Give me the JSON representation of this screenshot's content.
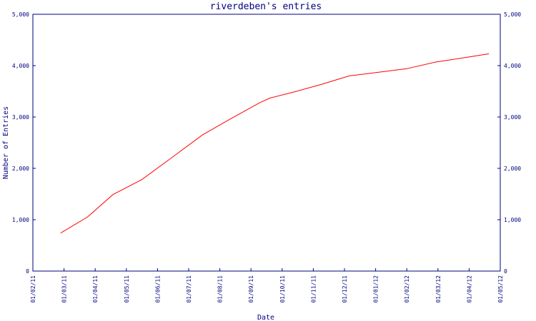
{
  "chart_data": {
    "type": "line",
    "title": "riverdeben's entries",
    "xlabel": "Date",
    "ylabel": "Number of Entries",
    "x_tick_labels": [
      "01/02/11",
      "01/03/11",
      "01/04/11",
      "01/05/11",
      "01/06/11",
      "01/07/11",
      "01/08/11",
      "01/09/11",
      "01/10/11",
      "01/11/11",
      "01/12/11",
      "01/01/12",
      "01/02/12",
      "01/03/12",
      "01/04/12",
      "01/05/12"
    ],
    "y_tick_labels": [
      "0",
      "1,000",
      "2,000",
      "3,000",
      "4,000",
      "5,000"
    ],
    "y_ticks": [
      0,
      1000,
      2000,
      3000,
      4000,
      5000
    ],
    "ylim": [
      0,
      5000
    ],
    "xlim": [
      "2011-02-01",
      "2012-05-01"
    ],
    "grid": false,
    "colors": {
      "axis": "#000080",
      "line": "#ff0000"
    },
    "series": [
      {
        "points": [
          {
            "x": "2011-02-28",
            "y": 740
          },
          {
            "x": "2011-03-26",
            "y": 1050
          },
          {
            "x": "2011-04-20",
            "y": 1490
          },
          {
            "x": "2011-05-18",
            "y": 1780
          },
          {
            "x": "2011-06-19",
            "y": 2250
          },
          {
            "x": "2011-07-16",
            "y": 2650
          },
          {
            "x": "2011-08-12",
            "y": 2960
          },
          {
            "x": "2011-09-10",
            "y": 3280
          },
          {
            "x": "2011-09-20",
            "y": 3370
          },
          {
            "x": "2011-10-12",
            "y": 3480
          },
          {
            "x": "2011-11-08",
            "y": 3630
          },
          {
            "x": "2011-12-06",
            "y": 3800
          },
          {
            "x": "2012-01-03",
            "y": 3870
          },
          {
            "x": "2012-01-31",
            "y": 3940
          },
          {
            "x": "2012-02-28",
            "y": 4070
          },
          {
            "x": "2012-04-01",
            "y": 4170
          },
          {
            "x": "2012-04-20",
            "y": 4230
          }
        ]
      }
    ]
  }
}
